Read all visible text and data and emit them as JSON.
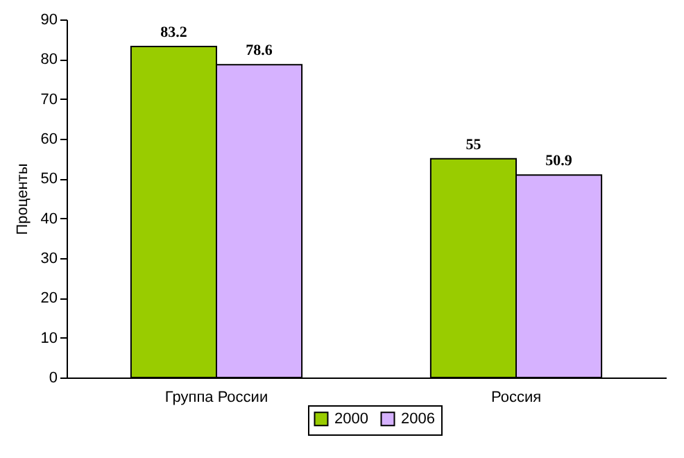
{
  "chart_data": {
    "type": "bar",
    "ylabel": "Проценты",
    "categories": [
      "Группа России",
      "Россия"
    ],
    "series": [
      {
        "name": "2000",
        "color": "#99cc00",
        "values": [
          83.2,
          55
        ]
      },
      {
        "name": "2006",
        "color": "#d6b2ff",
        "values": [
          78.6,
          50.9
        ]
      }
    ],
    "ylim": [
      0,
      90
    ],
    "yticks": [
      0,
      10,
      20,
      30,
      40,
      50,
      60,
      70,
      80,
      90
    ],
    "grid": false,
    "legend": "bottom",
    "data_labels": true
  }
}
